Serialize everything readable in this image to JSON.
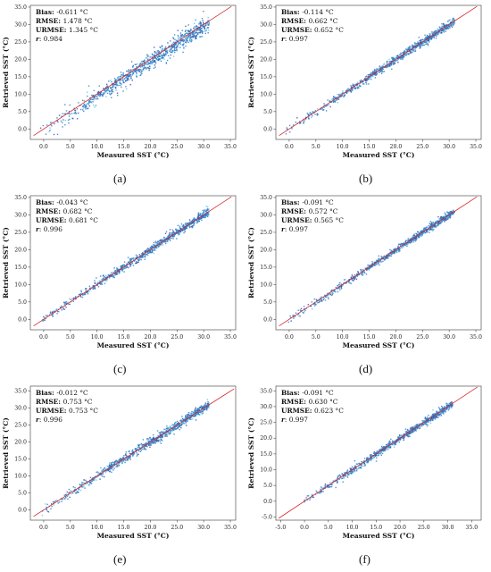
{
  "chart_data": [
    {
      "type": "scatter",
      "panel_label": "(a)",
      "xlabel": "Measured SST (°C)",
      "ylabel": "Retrieved SST (°C)",
      "xlim": [
        -2.5,
        36
      ],
      "ylim": [
        -3,
        35.5
      ],
      "xticks": [
        "0.0",
        "5.0",
        "10.0",
        "15.0",
        "20.0",
        "25.0",
        "30.0",
        "35.0"
      ],
      "yticks": [
        "0.0",
        "5.0",
        "10.0",
        "15.0",
        "20.0",
        "25.0",
        "30.0",
        "35.0"
      ],
      "stats": {
        "bias": "-0.611 °C",
        "rmse": "1.478 °C",
        "urmse": "1.345 °C",
        "r": "0.984"
      },
      "reference_line": "1:1",
      "grid": false,
      "point_color": "#2e7fc8",
      "line_color": "#d62728"
    },
    {
      "type": "scatter",
      "panel_label": "(b)",
      "xlabel": "Measured SST (°C)",
      "ylabel": "Retrieved SST (°C)",
      "xlim": [
        -2.5,
        36
      ],
      "ylim": [
        -3,
        35.5
      ],
      "xticks": [
        "0.0",
        "5.0",
        "10.0",
        "15.0",
        "20.0",
        "25.0",
        "30.0",
        "35.0"
      ],
      "yticks": [
        "0.0",
        "5.0",
        "10.0",
        "15.0",
        "20.0",
        "25.0",
        "30.0",
        "35.0"
      ],
      "stats": {
        "bias": "-0.114 °C",
        "rmse": "0.662 °C",
        "urmse": "0.652 °C",
        "r": "0.997"
      },
      "reference_line": "1:1",
      "grid": false,
      "point_color": "#2e7fc8",
      "line_color": "#d62728"
    },
    {
      "type": "scatter",
      "panel_label": "(c)",
      "xlabel": "Measured SST (°C)",
      "ylabel": "Retrieved SST (°C)",
      "xlim": [
        -2.5,
        36
      ],
      "ylim": [
        -3,
        35.5
      ],
      "xticks": [
        "0.0",
        "5.0",
        "10.0",
        "15.0",
        "20.0",
        "25.0",
        "30.0",
        "35.0"
      ],
      "yticks": [
        "0.0",
        "5.0",
        "10.0",
        "15.0",
        "20.0",
        "25.0",
        "30.0",
        "35.0"
      ],
      "stats": {
        "bias": "-0.043 °C",
        "rmse": "0.682 °C",
        "urmse": "0.681 °C",
        "r": "0.996"
      },
      "reference_line": "1:1",
      "grid": false,
      "point_color": "#2e7fc8",
      "line_color": "#d62728"
    },
    {
      "type": "scatter",
      "panel_label": "(d)",
      "xlabel": "Measured SST (°C)",
      "ylabel": "Retrieved SST (°C)",
      "xlim": [
        -2.5,
        36
      ],
      "ylim": [
        -3,
        35.5
      ],
      "xticks": [
        "0.0",
        "5.0",
        "10.0",
        "15.0",
        "20.0",
        "25.0",
        "30.0",
        "35.0"
      ],
      "yticks": [
        "0.0",
        "5.0",
        "10.0",
        "15.0",
        "20.0",
        "25.0",
        "30.0",
        "35.0"
      ],
      "stats": {
        "bias": "-0.091 °C",
        "rmse": "0.572 °C",
        "urmse": "0.565 °C",
        "r": "0.997"
      },
      "reference_line": "1:1",
      "grid": false,
      "point_color": "#2e7fc8",
      "line_color": "#d62728"
    },
    {
      "type": "scatter",
      "panel_label": "(e)",
      "xlabel": "Measured SST (°C)",
      "ylabel": "Retrieved SST (°C)",
      "xlim": [
        -2.5,
        36
      ],
      "ylim": [
        -3,
        36.5
      ],
      "xticks": [
        "0.0",
        "5.0",
        "10.0",
        "15.0",
        "20.0",
        "25.0",
        "30.0",
        "35.0"
      ],
      "yticks": [
        "0.0",
        "5.0",
        "10.0",
        "15.0",
        "20.0",
        "25.0",
        "30.0",
        "35.0"
      ],
      "stats": {
        "bias": "-0.012 °C",
        "rmse": "0.753 °C",
        "urmse": "0.753 °C",
        "r": "0.996"
      },
      "reference_line": "1:1",
      "grid": false,
      "point_color": "#2e7fc8",
      "line_color": "#d62728"
    },
    {
      "type": "scatter",
      "panel_label": "(f)",
      "xlabel": "Measured SST (°C)",
      "ylabel": "Retrieved SST (°C)",
      "xlim": [
        -6,
        37
      ],
      "ylim": [
        -6,
        36.5
      ],
      "xticks": [
        "-5.0",
        "0.0",
        "5.0",
        "10.0",
        "15.0",
        "20.0",
        "25.0",
        "30.0",
        "35.0"
      ],
      "yticks": [
        "-5.0",
        "0.0",
        "5.0",
        "10.0",
        "15.0",
        "20.0",
        "25.0",
        "30.0",
        "35.0"
      ],
      "stats": {
        "bias": "-0.091 °C",
        "rmse": "0.630 °C",
        "urmse": "0.623 °C",
        "r": "0.997"
      },
      "reference_line": "1:1",
      "grid": false,
      "point_color": "#2e7fc8",
      "line_color": "#d62728"
    }
  ]
}
